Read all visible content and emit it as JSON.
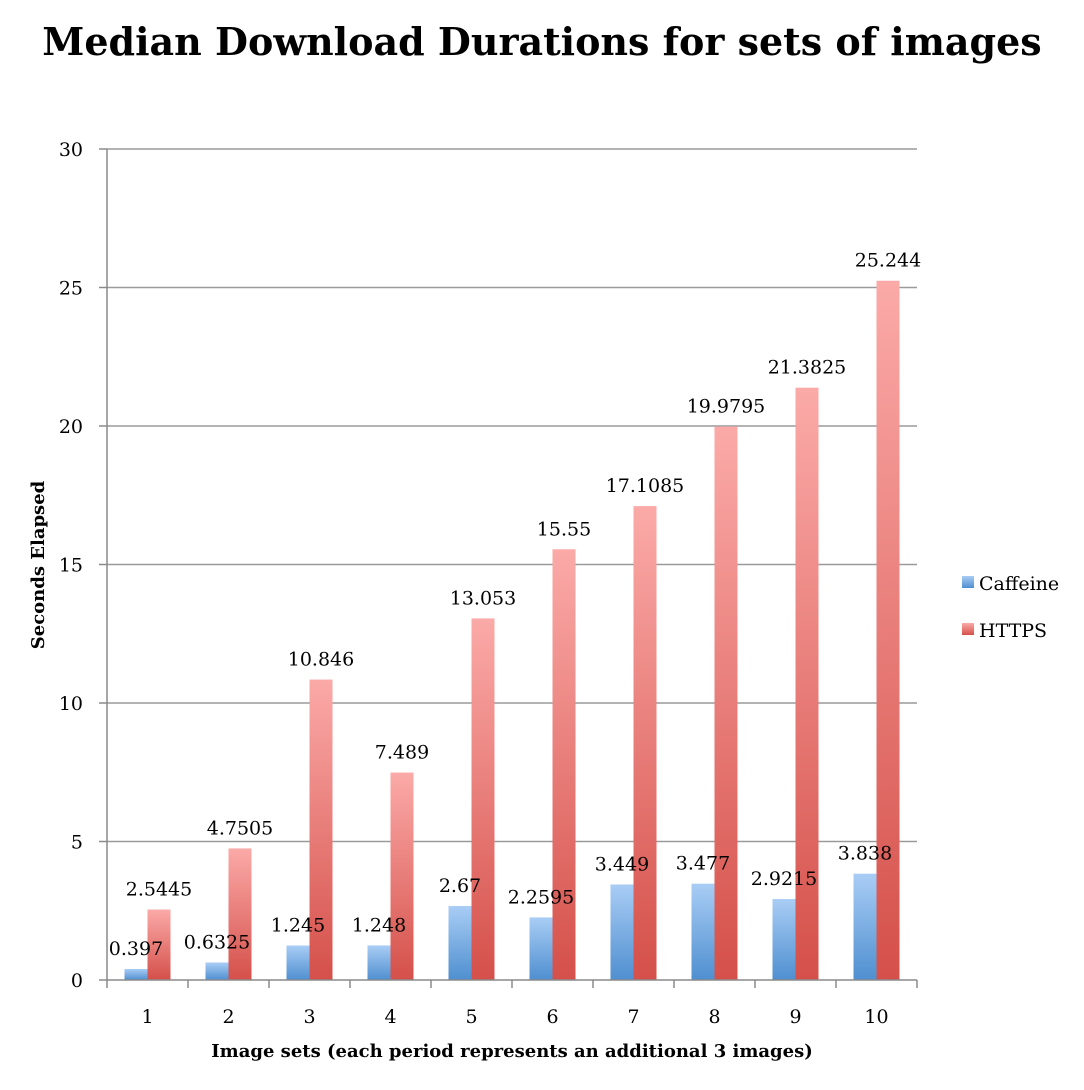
{
  "chart_data": {
    "type": "bar",
    "title": "Median Download Durations for sets of images",
    "xlabel": "Image sets (each period represents an additional 3 images)",
    "ylabel": "Seconds Elapsed",
    "ylim": [
      0,
      30
    ],
    "yticks": [
      0,
      5,
      10,
      15,
      20,
      25,
      30
    ],
    "grid": true,
    "legend": "right",
    "categories": [
      "1",
      "2",
      "3",
      "4",
      "5",
      "6",
      "7",
      "8",
      "9",
      "10"
    ],
    "series": [
      {
        "name": "Caffeine",
        "color": "#5b9bd5",
        "values": [
          0.397,
          0.6325,
          1.245,
          1.248,
          2.67,
          2.2595,
          3.449,
          3.477,
          2.9215,
          3.838
        ],
        "labels": [
          "0.397",
          "0.6325",
          "1.245",
          "1.248",
          "2.67",
          "2.2595",
          "3.449",
          "3.477",
          "2.9215",
          "3.838"
        ]
      },
      {
        "name": "HTTPS",
        "color": "#d9534f",
        "values": [
          2.5445,
          4.7505,
          10.846,
          7.489,
          13.053,
          15.55,
          17.1085,
          19.9795,
          21.3825,
          25.244
        ],
        "labels": [
          "2.5445",
          "4.7505",
          "10.846",
          "7.489",
          "13.053",
          "15.55",
          "17.1085",
          "19.9795",
          "21.3825",
          "25.244"
        ]
      }
    ]
  }
}
